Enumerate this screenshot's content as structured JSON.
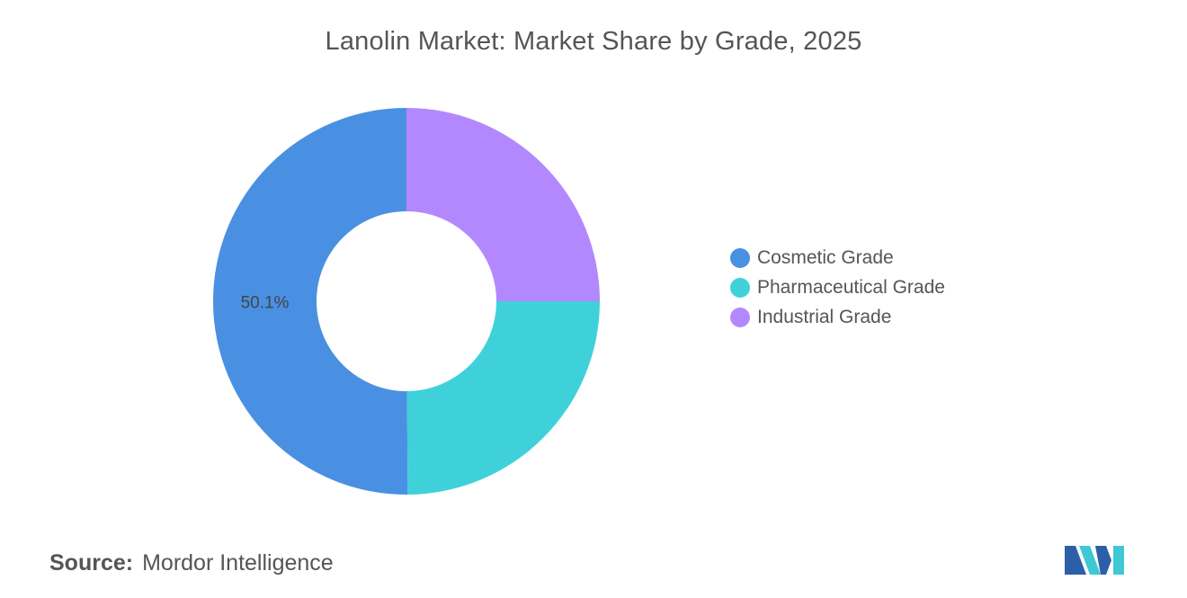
{
  "chart_data": {
    "type": "pie",
    "title": "Lanolin Market: Market Share by Grade, 2025",
    "donut": true,
    "categories": [
      "Cosmetic Grade",
      "Pharmaceutical Grade",
      "Industrial Grade"
    ],
    "values": [
      50.1,
      24.9,
      25.0
    ],
    "colors": [
      "#4a90e2",
      "#3fd1da",
      "#b388ff"
    ],
    "data_labels": [
      "50.1%",
      "",
      ""
    ],
    "legend_position": "right"
  },
  "source": {
    "label": "Source:",
    "value": "Mordor Intelligence"
  },
  "logo": {
    "icon": "mordor-intelligence-logo",
    "colors": [
      "#2c5fa8",
      "#3fc8d4"
    ]
  }
}
